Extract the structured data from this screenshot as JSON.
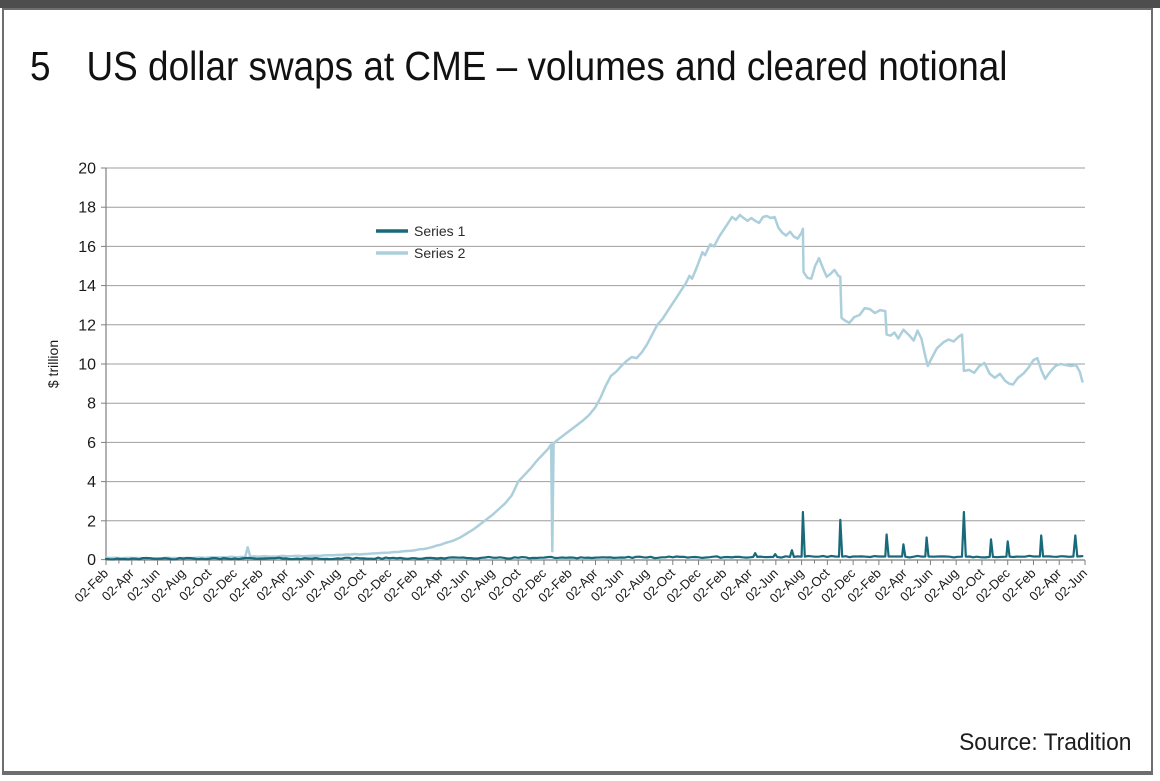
{
  "window": {
    "top_bar_color": "#4d4d4d",
    "frame_border_color": "#6e6e6e",
    "background": "#ffffff"
  },
  "figure": {
    "number": "5",
    "title": "US dollar swaps at CME – volumes and cleared notional"
  },
  "source": {
    "label": "Source: Tradition"
  },
  "chart_data": {
    "type": "line",
    "title": "",
    "xlabel": "",
    "ylabel": "$ trillion",
    "ylim": [
      0,
      20
    ],
    "yticks": [
      0,
      2,
      4,
      6,
      8,
      10,
      12,
      14,
      16,
      18,
      20
    ],
    "grid": "horizontal",
    "grid_color": "#9e9e9e",
    "axis_color": "#7f7f7f",
    "tick_label_color": "#1a1a1a",
    "x_months_total": 76,
    "x_labels": [
      "02-Feb",
      "02-Apr",
      "02-Jun",
      "02-Aug",
      "02-Oct",
      "02-Dec",
      "02-Feb",
      "02-Apr",
      "02-Jun",
      "02-Aug",
      "02-Oct",
      "02-Dec",
      "02-Feb",
      "02-Apr",
      "02-Jun",
      "02-Aug",
      "02-Oct",
      "02-Dec",
      "02-Feb",
      "02-Apr",
      "02-Jun",
      "02-Aug",
      "02-Oct",
      "02-Dec",
      "02-Feb",
      "02-Apr",
      "02-Jun",
      "02-Aug",
      "02-Oct",
      "02-Dec",
      "02-Feb",
      "02-Apr",
      "02-Jun",
      "02-Aug",
      "02-Oct",
      "02-Dec",
      "02-Feb",
      "02-Apr",
      "02-Jun"
    ],
    "legend": {
      "position": "inside-upper-middle-left",
      "entries": [
        {
          "name": "Series 1",
          "color": "#186a7a"
        },
        {
          "name": "Series 2",
          "color": "#accfdc"
        }
      ]
    },
    "series": [
      {
        "name": "Series 1",
        "color": "#186a7a",
        "stroke_width": 2.2,
        "jitter": 0.04,
        "points": [
          [
            0,
            0.06
          ],
          [
            2,
            0.07
          ],
          [
            4,
            0.06
          ],
          [
            6,
            0.07
          ],
          [
            8,
            0.06
          ],
          [
            10,
            0.08
          ],
          [
            12,
            0.07
          ],
          [
            14,
            0.08
          ],
          [
            16,
            0.07
          ],
          [
            18,
            0.08
          ],
          [
            20,
            0.08
          ],
          [
            22,
            0.09
          ],
          [
            24,
            0.09
          ],
          [
            26,
            0.1
          ],
          [
            28,
            0.1
          ],
          [
            30,
            0.12
          ],
          [
            32,
            0.11
          ],
          [
            34,
            0.12
          ],
          [
            36,
            0.13
          ],
          [
            38,
            0.12
          ],
          [
            40,
            0.13
          ],
          [
            42,
            0.13
          ],
          [
            44,
            0.14
          ],
          [
            46,
            0.14
          ],
          [
            48,
            0.15
          ],
          [
            50,
            0.14
          ],
          [
            50.25,
            0.16
          ],
          [
            50.4,
            0.35
          ],
          [
            50.55,
            0.16
          ],
          [
            51.3,
            0.15
          ],
          [
            51.8,
            0.16
          ],
          [
            51.95,
            0.3
          ],
          [
            52.1,
            0.16
          ],
          [
            53.1,
            0.16
          ],
          [
            53.25,
            0.5
          ],
          [
            53.4,
            0.16
          ],
          [
            54,
            0.17
          ],
          [
            54.1,
            2.45
          ],
          [
            54.25,
            0.17
          ],
          [
            55,
            0.17
          ],
          [
            56,
            0.16
          ],
          [
            56.9,
            0.17
          ],
          [
            57,
            2.05
          ],
          [
            57.15,
            0.17
          ],
          [
            58,
            0.18
          ],
          [
            59,
            0.17
          ],
          [
            60,
            0.18
          ],
          [
            60.5,
            0.18
          ],
          [
            60.6,
            1.3
          ],
          [
            60.75,
            0.18
          ],
          [
            61.3,
            0.18
          ],
          [
            61.8,
            0.18
          ],
          [
            61.9,
            0.8
          ],
          [
            62.05,
            0.17
          ],
          [
            62.7,
            0.17
          ],
          [
            63.6,
            0.18
          ],
          [
            63.7,
            1.15
          ],
          [
            63.85,
            0.18
          ],
          [
            64.6,
            0.18
          ],
          [
            65.5,
            0.17
          ],
          [
            66.45,
            0.17
          ],
          [
            66.6,
            2.45
          ],
          [
            66.75,
            0.17
          ],
          [
            67.6,
            0.17
          ],
          [
            68.6,
            0.16
          ],
          [
            68.7,
            1.05
          ],
          [
            68.85,
            0.16
          ],
          [
            69.5,
            0.16
          ],
          [
            69.9,
            0.17
          ],
          [
            70,
            0.95
          ],
          [
            70.15,
            0.17
          ],
          [
            71,
            0.17
          ],
          [
            72,
            0.18
          ],
          [
            72.5,
            0.18
          ],
          [
            72.6,
            1.25
          ],
          [
            72.75,
            0.18
          ],
          [
            73.5,
            0.17
          ],
          [
            74.5,
            0.18
          ],
          [
            75.1,
            0.18
          ],
          [
            75.25,
            1.25
          ],
          [
            75.4,
            0.18
          ],
          [
            75.8,
            0.2
          ]
        ]
      },
      {
        "name": "Series 2",
        "color": "#accfdc",
        "stroke_width": 2.5,
        "jitter": 0.018,
        "points": [
          [
            0,
            0.12
          ],
          [
            1,
            0.1
          ],
          [
            2,
            0.1
          ],
          [
            3,
            0.08
          ],
          [
            4,
            0.08
          ],
          [
            5,
            0.1
          ],
          [
            6,
            0.1
          ],
          [
            7,
            0.12
          ],
          [
            8,
            0.13
          ],
          [
            9,
            0.14
          ],
          [
            10,
            0.15
          ],
          [
            10.8,
            0.15
          ],
          [
            11,
            0.65
          ],
          [
            11.2,
            0.17
          ],
          [
            12,
            0.18
          ],
          [
            13,
            0.18
          ],
          [
            14,
            0.2
          ],
          [
            15,
            0.21
          ],
          [
            16,
            0.22
          ],
          [
            17,
            0.24
          ],
          [
            18,
            0.26
          ],
          [
            19,
            0.28
          ],
          [
            20,
            0.3
          ],
          [
            21,
            0.34
          ],
          [
            22,
            0.38
          ],
          [
            23,
            0.44
          ],
          [
            24,
            0.5
          ],
          [
            25,
            0.6
          ],
          [
            26,
            0.78
          ],
          [
            27,
            1.0
          ],
          [
            27.5,
            1.15
          ],
          [
            28,
            1.35
          ],
          [
            28.5,
            1.55
          ],
          [
            29,
            1.8
          ],
          [
            29.5,
            2.05
          ],
          [
            30,
            2.3
          ],
          [
            30.5,
            2.6
          ],
          [
            31,
            2.9
          ],
          [
            31.5,
            3.3
          ],
          [
            32,
            4.0
          ],
          [
            32.5,
            4.35
          ],
          [
            33,
            4.7
          ],
          [
            33.5,
            5.1
          ],
          [
            34,
            5.45
          ],
          [
            34.3,
            5.65
          ],
          [
            34.55,
            5.9
          ],
          [
            34.65,
            0.45
          ],
          [
            34.75,
            5.95
          ],
          [
            35,
            6.1
          ],
          [
            35.5,
            6.35
          ],
          [
            36,
            6.6
          ],
          [
            36.5,
            6.85
          ],
          [
            37,
            7.1
          ],
          [
            37.5,
            7.4
          ],
          [
            38,
            7.8
          ],
          [
            38.4,
            8.3
          ],
          [
            38.8,
            8.9
          ],
          [
            39.2,
            9.4
          ],
          [
            39.6,
            9.6
          ],
          [
            40,
            9.9
          ],
          [
            40.4,
            10.15
          ],
          [
            40.8,
            10.35
          ],
          [
            41.2,
            10.3
          ],
          [
            41.6,
            10.6
          ],
          [
            42,
            11.0
          ],
          [
            42.4,
            11.5
          ],
          [
            42.8,
            12.0
          ],
          [
            43.2,
            12.3
          ],
          [
            43.6,
            12.7
          ],
          [
            44,
            13.1
          ],
          [
            44.4,
            13.5
          ],
          [
            45,
            14.1
          ],
          [
            45.3,
            14.5
          ],
          [
            45.5,
            14.35
          ],
          [
            45.9,
            15.0
          ],
          [
            46.3,
            15.7
          ],
          [
            46.5,
            15.55
          ],
          [
            46.9,
            16.1
          ],
          [
            47.2,
            16.0
          ],
          [
            47.6,
            16.5
          ],
          [
            48,
            16.9
          ],
          [
            48.3,
            17.2
          ],
          [
            48.6,
            17.5
          ],
          [
            48.9,
            17.35
          ],
          [
            49.2,
            17.6
          ],
          [
            49.5,
            17.45
          ],
          [
            49.8,
            17.3
          ],
          [
            50.1,
            17.45
          ],
          [
            50.4,
            17.3
          ],
          [
            50.7,
            17.2
          ],
          [
            51,
            17.5
          ],
          [
            51.3,
            17.55
          ],
          [
            51.6,
            17.45
          ],
          [
            51.9,
            17.5
          ],
          [
            52.2,
            16.95
          ],
          [
            52.5,
            16.7
          ],
          [
            52.8,
            16.55
          ],
          [
            53.1,
            16.75
          ],
          [
            53.4,
            16.5
          ],
          [
            53.7,
            16.4
          ],
          [
            54,
            16.7
          ],
          [
            54.1,
            16.9
          ],
          [
            54.15,
            14.7
          ],
          [
            54.45,
            14.4
          ],
          [
            54.75,
            14.35
          ],
          [
            55.05,
            15.0
          ],
          [
            55.35,
            15.4
          ],
          [
            55.65,
            14.9
          ],
          [
            55.95,
            14.45
          ],
          [
            56.25,
            14.6
          ],
          [
            56.55,
            14.8
          ],
          [
            56.85,
            14.5
          ],
          [
            57,
            14.45
          ],
          [
            57.1,
            12.35
          ],
          [
            57.4,
            12.2
          ],
          [
            57.7,
            12.1
          ],
          [
            58.1,
            12.4
          ],
          [
            58.5,
            12.5
          ],
          [
            58.9,
            12.85
          ],
          [
            59.3,
            12.8
          ],
          [
            59.7,
            12.6
          ],
          [
            60.1,
            12.75
          ],
          [
            60.5,
            12.7
          ],
          [
            60.6,
            11.5
          ],
          [
            60.9,
            11.45
          ],
          [
            61.2,
            11.6
          ],
          [
            61.5,
            11.3
          ],
          [
            61.9,
            11.75
          ],
          [
            62.3,
            11.5
          ],
          [
            62.7,
            11.2
          ],
          [
            63,
            11.7
          ],
          [
            63.3,
            11.3
          ],
          [
            63.6,
            10.4
          ],
          [
            63.8,
            9.9
          ],
          [
            64.1,
            10.3
          ],
          [
            64.5,
            10.8
          ],
          [
            65,
            11.1
          ],
          [
            65.4,
            11.25
          ],
          [
            65.8,
            11.15
          ],
          [
            66.2,
            11.4
          ],
          [
            66.45,
            11.5
          ],
          [
            66.6,
            9.65
          ],
          [
            67,
            9.7
          ],
          [
            67.4,
            9.55
          ],
          [
            67.8,
            9.9
          ],
          [
            68.2,
            10.05
          ],
          [
            68.6,
            9.5
          ],
          [
            69,
            9.3
          ],
          [
            69.4,
            9.5
          ],
          [
            69.8,
            9.15
          ],
          [
            70.1,
            9.0
          ],
          [
            70.4,
            8.95
          ],
          [
            70.8,
            9.3
          ],
          [
            71.2,
            9.5
          ],
          [
            71.6,
            9.8
          ],
          [
            72,
            10.2
          ],
          [
            72.3,
            10.3
          ],
          [
            72.6,
            9.7
          ],
          [
            72.9,
            9.25
          ],
          [
            73.3,
            9.6
          ],
          [
            73.7,
            9.9
          ],
          [
            74.1,
            10.0
          ],
          [
            74.5,
            9.95
          ],
          [
            74.9,
            9.9
          ],
          [
            75.3,
            9.95
          ],
          [
            75.6,
            9.6
          ],
          [
            75.8,
            9.1
          ]
        ]
      }
    ]
  }
}
